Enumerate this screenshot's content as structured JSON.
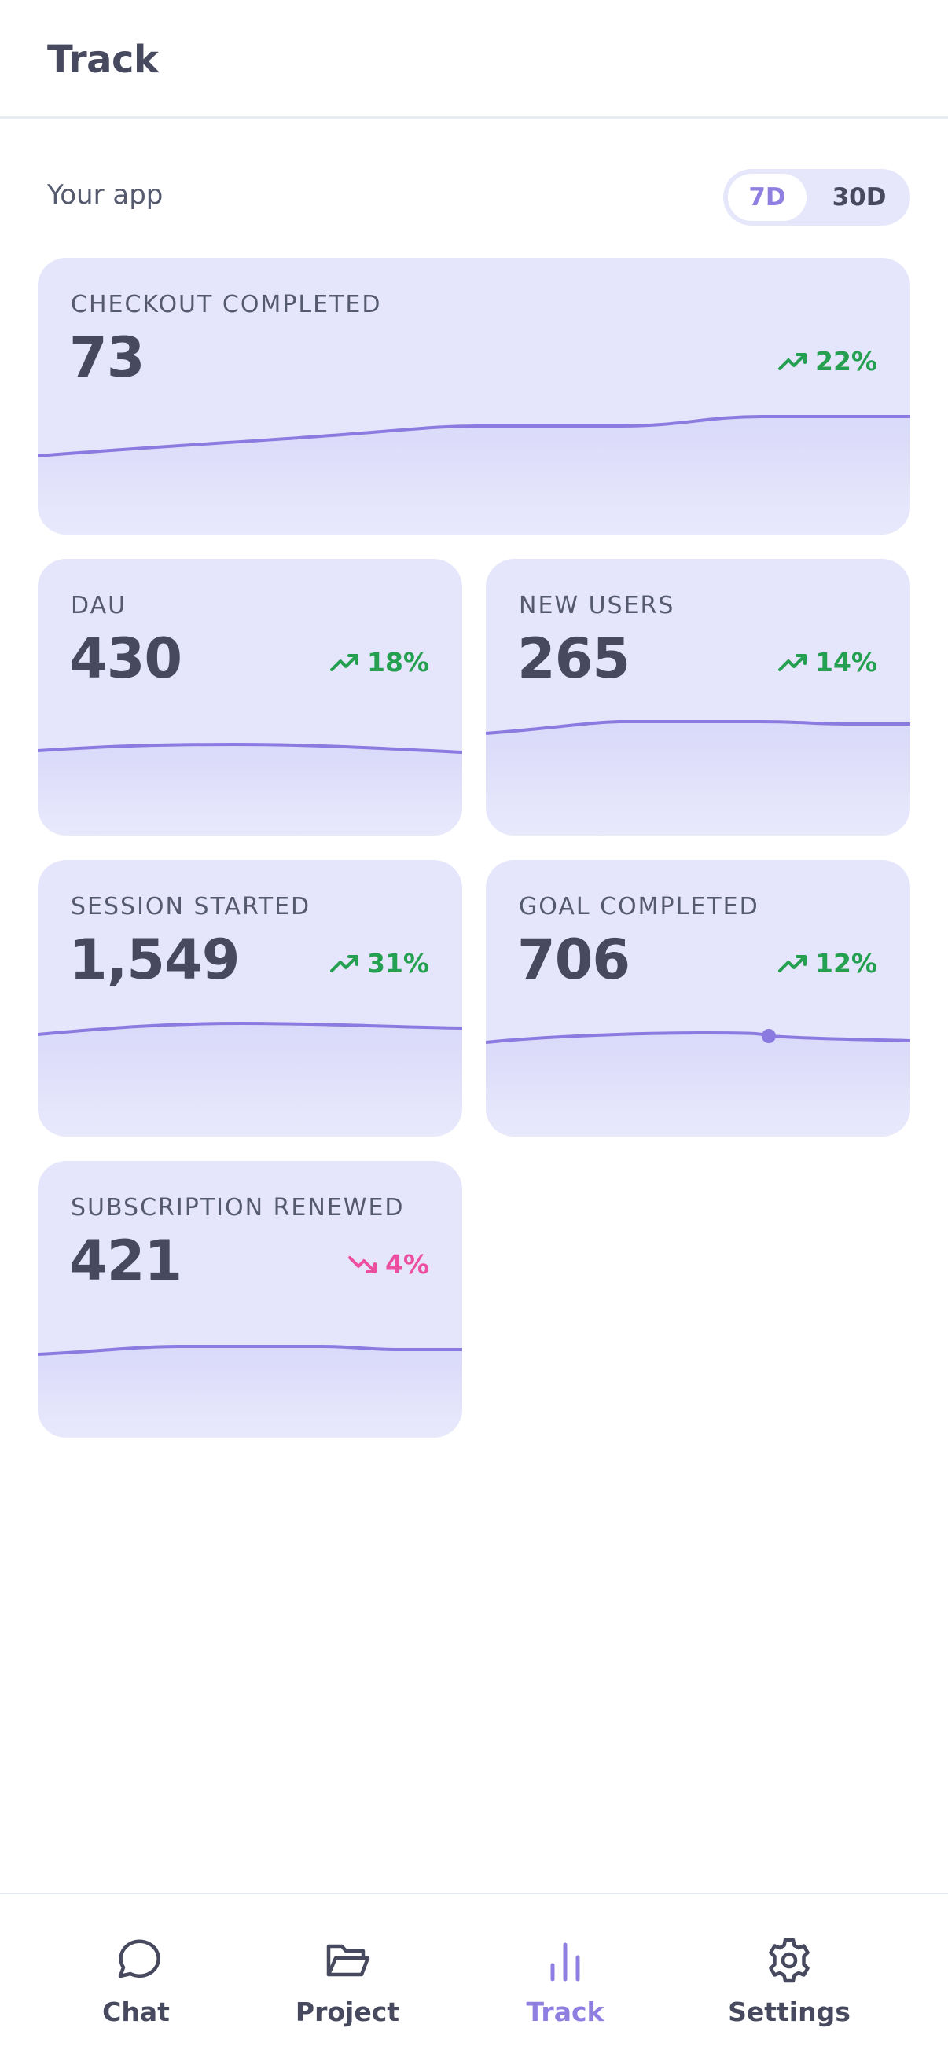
{
  "header": {
    "title": "Track"
  },
  "app_label": "Your app",
  "range": {
    "options": [
      "7D",
      "30D"
    ],
    "selected": "7D"
  },
  "colors": {
    "accent": "#8f7fe0",
    "card_bg": "#e5e6fb",
    "line": "#8b7be0",
    "up": "#24a050",
    "down": "#ec4fa0",
    "text": "#474a5e"
  },
  "metrics": [
    {
      "label": "CHECKOUT COMPLETED",
      "value": "73",
      "change": "22%",
      "trend": "up"
    },
    {
      "label": "DAU",
      "value": "430",
      "change": "18%",
      "trend": "up"
    },
    {
      "label": "NEW USERS",
      "value": "265",
      "change": "14%",
      "trend": "up"
    },
    {
      "label": "SESSION STARTED",
      "value": "1,549",
      "change": "31%",
      "trend": "up"
    },
    {
      "label": "GOAL COMPLETED",
      "value": "706",
      "change": "12%",
      "trend": "up"
    },
    {
      "label": "SUBSCRIPTION RENEWED",
      "value": "421",
      "change": "4%",
      "trend": "down"
    }
  ],
  "nav": {
    "items": [
      {
        "label": "Chat",
        "icon": "chat-bubble-icon",
        "active": false
      },
      {
        "label": "Project",
        "icon": "folder-open-icon",
        "active": false
      },
      {
        "label": "Track",
        "icon": "bar-chart-icon",
        "active": true
      },
      {
        "label": "Settings",
        "icon": "gear-icon",
        "active": false
      }
    ]
  }
}
